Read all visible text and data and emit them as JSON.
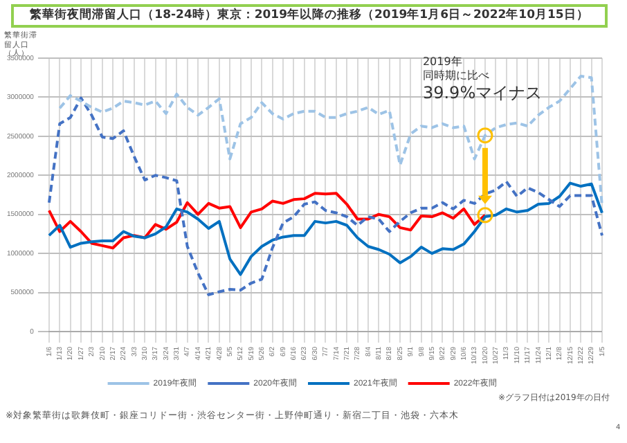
{
  "chart_data": {
    "type": "line",
    "title": "繁華街夜間滞留人口（18-24時）東京：2019年以降の推移（2019年1月6日～2022年10月15日）",
    "ylabel": "繁華街滞留人口（人）",
    "categories": [
      "1/6",
      "1/13",
      "1/20",
      "1/27",
      "2/3",
      "2/10",
      "2/17",
      "2/24",
      "3/3",
      "3/10",
      "3/17",
      "3/24",
      "3/31",
      "4/7",
      "4/14",
      "4/21",
      "4/28",
      "5/5",
      "5/12",
      "5/19",
      "5/26",
      "6/2",
      "6/9",
      "6/16",
      "6/23",
      "6/30",
      "7/7",
      "7/14",
      "7/21",
      "7/28",
      "8/4",
      "8/11",
      "8/18",
      "8/25",
      "9/1",
      "9/8",
      "9/15",
      "9/22",
      "9/29",
      "10/6",
      "10/13",
      "10/20",
      "10/27",
      "11/3",
      "11/10",
      "11/17",
      "11/24",
      "12/1",
      "12/8",
      "12/15",
      "12/22",
      "12/29",
      "1/5"
    ],
    "series": [
      {
        "name": "2019年夜間",
        "color": "#9dc3e6",
        "line_style": "dashed",
        "values": [
          null,
          2860000,
          3020000,
          2950000,
          2870000,
          2810000,
          2860000,
          2950000,
          2930000,
          2900000,
          2950000,
          2790000,
          3040000,
          2870000,
          2770000,
          2870000,
          2980000,
          2210000,
          2660000,
          2740000,
          2930000,
          2790000,
          2720000,
          2790000,
          2820000,
          2820000,
          2740000,
          2740000,
          2790000,
          2820000,
          2870000,
          2780000,
          2830000,
          2130000,
          2530000,
          2630000,
          2610000,
          2660000,
          2610000,
          2630000,
          2210000,
          2510000,
          2610000,
          2650000,
          2670000,
          2630000,
          2770000,
          2870000,
          2950000,
          3110000,
          3270000,
          3250000,
          1600000
        ]
      },
      {
        "name": "2020年夜間",
        "color": "#4472c4",
        "line_style": "dashed",
        "values": [
          1650000,
          2660000,
          2740000,
          2990000,
          2770000,
          2490000,
          2470000,
          2570000,
          2240000,
          1940000,
          2000000,
          1970000,
          1930000,
          1090000,
          750000,
          470000,
          510000,
          540000,
          530000,
          620000,
          670000,
          1070000,
          1390000,
          1470000,
          1630000,
          1660000,
          1550000,
          1520000,
          1470000,
          1360000,
          1470000,
          1440000,
          1280000,
          1410000,
          1520000,
          1580000,
          1580000,
          1650000,
          1570000,
          1680000,
          1640000,
          1760000,
          1810000,
          1920000,
          1730000,
          1840000,
          1780000,
          1690000,
          1600000,
          1740000,
          1740000,
          1740000,
          1230000
        ]
      },
      {
        "name": "2021年夜間",
        "color": "#0070c0",
        "line_style": "solid",
        "values": [
          1230000,
          1360000,
          1080000,
          1130000,
          1150000,
          1160000,
          1160000,
          1280000,
          1220000,
          1200000,
          1250000,
          1340000,
          1570000,
          1530000,
          1440000,
          1320000,
          1410000,
          930000,
          730000,
          960000,
          1090000,
          1170000,
          1210000,
          1230000,
          1230000,
          1410000,
          1390000,
          1410000,
          1360000,
          1200000,
          1090000,
          1050000,
          990000,
          880000,
          960000,
          1080000,
          1000000,
          1060000,
          1050000,
          1120000,
          1280000,
          1470000,
          1490000,
          1570000,
          1530000,
          1550000,
          1630000,
          1640000,
          1730000,
          1900000,
          1860000,
          1890000,
          1520000
        ]
      },
      {
        "name": "2022年夜間",
        "color": "#ff0000",
        "line_style": "solid",
        "values": [
          1550000,
          1280000,
          1410000,
          1280000,
          1130000,
          1100000,
          1070000,
          1200000,
          1230000,
          1200000,
          1370000,
          1310000,
          1400000,
          1650000,
          1500000,
          1640000,
          1580000,
          1600000,
          1330000,
          1530000,
          1570000,
          1670000,
          1640000,
          1690000,
          1700000,
          1770000,
          1760000,
          1770000,
          1630000,
          1440000,
          1440000,
          1500000,
          1470000,
          1330000,
          1300000,
          1480000,
          1470000,
          1520000,
          1450000,
          1570000,
          1370000,
          1490000,
          null,
          null,
          null,
          null,
          null,
          null,
          null,
          null,
          null,
          null,
          null
        ]
      }
    ],
    "ylim": [
      0,
      3500000
    ],
    "yticks": [
      0,
      500000,
      1000000,
      1500000,
      2000000,
      2500000,
      3000000,
      3500000
    ],
    "grid": true,
    "legend": "bottom",
    "marker": "none",
    "annotations": [
      "2019年",
      "同時期に比べ",
      "39.9%マイナス",
      "※グラフ日付は2019年の日付",
      "※対象繁華街は歌舞伎町・銀座コリドー街・渋谷センター街・上野仲町通り・新宿二丁目・池袋・六本木",
      "4"
    ]
  }
}
